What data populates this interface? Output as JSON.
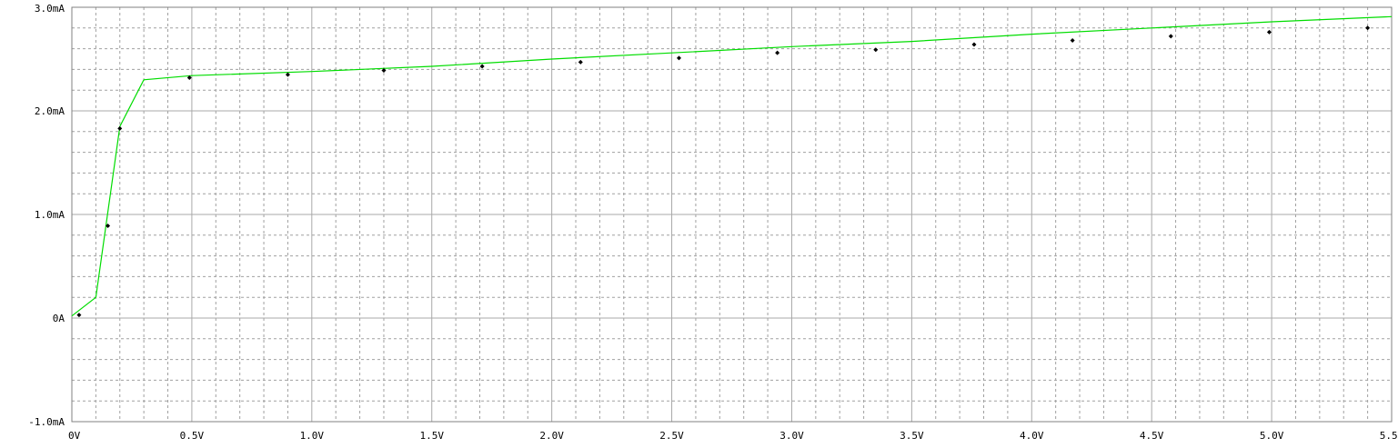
{
  "chart_data": {
    "type": "line",
    "title": "",
    "xlabel": "",
    "ylabel": "",
    "xlim": [
      0,
      5.5
    ],
    "ylim": [
      -1.0,
      3.0
    ],
    "grid": true,
    "x_ticks": [
      {
        "value": 0.0,
        "label": "0V"
      },
      {
        "value": 0.5,
        "label": "0.5V"
      },
      {
        "value": 1.0,
        "label": "1.0V"
      },
      {
        "value": 1.5,
        "label": "1.5V"
      },
      {
        "value": 2.0,
        "label": "2.0V"
      },
      {
        "value": 2.5,
        "label": "2.5V"
      },
      {
        "value": 3.0,
        "label": "3.0V"
      },
      {
        "value": 3.5,
        "label": "3.5V"
      },
      {
        "value": 4.0,
        "label": "4.0V"
      },
      {
        "value": 4.5,
        "label": "4.5V"
      },
      {
        "value": 5.0,
        "label": "5.0V"
      },
      {
        "value": 5.5,
        "label": "5.5V"
      }
    ],
    "y_ticks": [
      {
        "value": 3.0,
        "label": "3.0mA"
      },
      {
        "value": 2.0,
        "label": "2.0mA"
      },
      {
        "value": 1.0,
        "label": "1.0mA"
      },
      {
        "value": 0.0,
        "label": "0A"
      },
      {
        "value": -1.0,
        "label": "-1.0mA"
      }
    ],
    "series": [
      {
        "color": "#00dd00",
        "marker_color": "#000000",
        "x": [
          0.0,
          0.1,
          0.2,
          0.3,
          0.5,
          1.0,
          1.5,
          2.0,
          2.5,
          3.0,
          3.5,
          4.0,
          4.5,
          5.0,
          5.5
        ],
        "y": [
          0.02,
          0.2,
          1.85,
          2.3,
          2.34,
          2.38,
          2.43,
          2.5,
          2.56,
          2.62,
          2.67,
          2.74,
          2.8,
          2.86,
          2.91
        ],
        "markers_x": [
          0.03,
          0.15,
          0.2,
          0.49,
          0.9,
          1.3,
          1.71,
          2.12,
          2.53,
          2.94,
          3.35,
          3.76,
          4.17,
          4.58,
          4.99,
          5.4
        ],
        "markers_y": [
          0.03,
          0.89,
          1.83,
          2.32,
          2.35,
          2.39,
          2.43,
          2.47,
          2.51,
          2.56,
          2.59,
          2.64,
          2.68,
          2.72,
          2.76,
          2.8
        ]
      }
    ]
  }
}
